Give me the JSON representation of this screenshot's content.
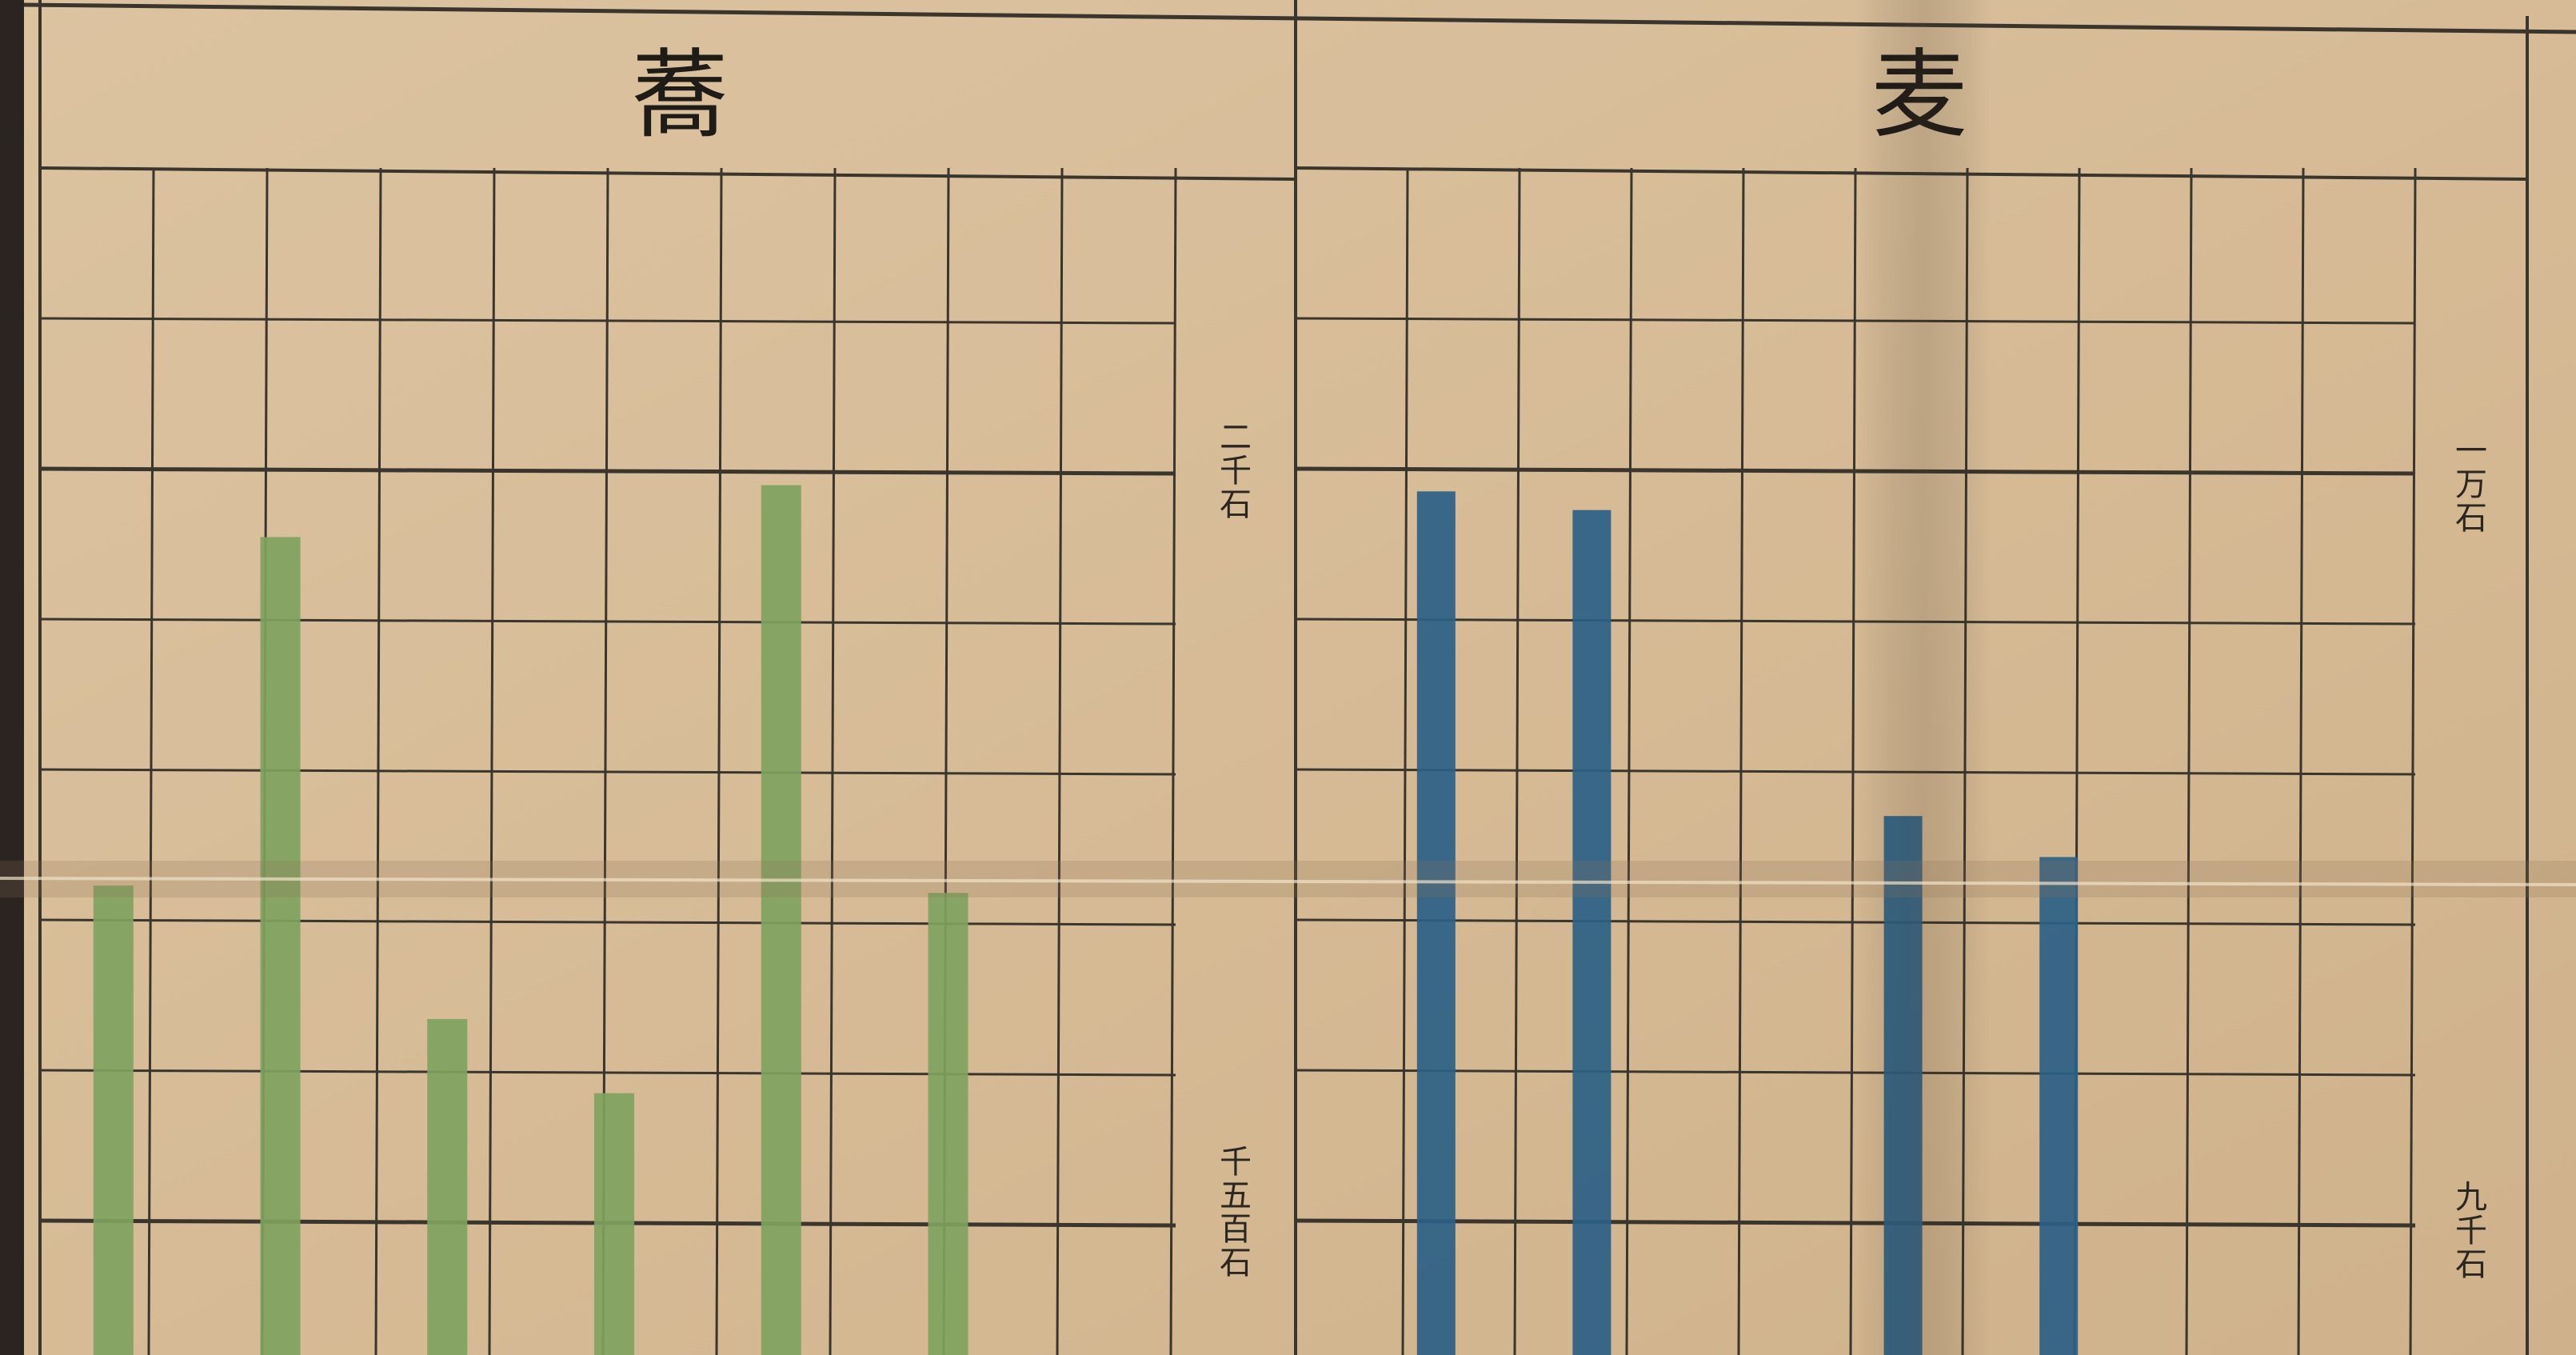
{
  "chart_data": [
    {
      "type": "bar",
      "title": "蕎",
      "scale_labels": [
        "二千石",
        "千五百石"
      ],
      "y_ticks": [
        2000,
        1500
      ],
      "series": [
        {
          "values": [
            1720,
            1955,
            1630,
            1580,
            1990,
            1715
          ],
          "color": "#7fa25e"
        }
      ],
      "grid": true
    },
    {
      "type": "bar",
      "title": "麦",
      "scale_labels": [
        "一万石",
        "九千石"
      ],
      "y_ticks": [
        10000,
        9000
      ],
      "series": [
        {
          "values": [
            9990,
            9965,
            null,
            9555,
            9500
          ],
          "color": "#2b5f86"
        }
      ],
      "grid": true
    }
  ],
  "colors": {
    "paper": "#d8bf9b",
    "grid_line": "#3a352d",
    "buckwheat_bar": "#7fa25e",
    "wheat_bar": "#2b5f86"
  }
}
